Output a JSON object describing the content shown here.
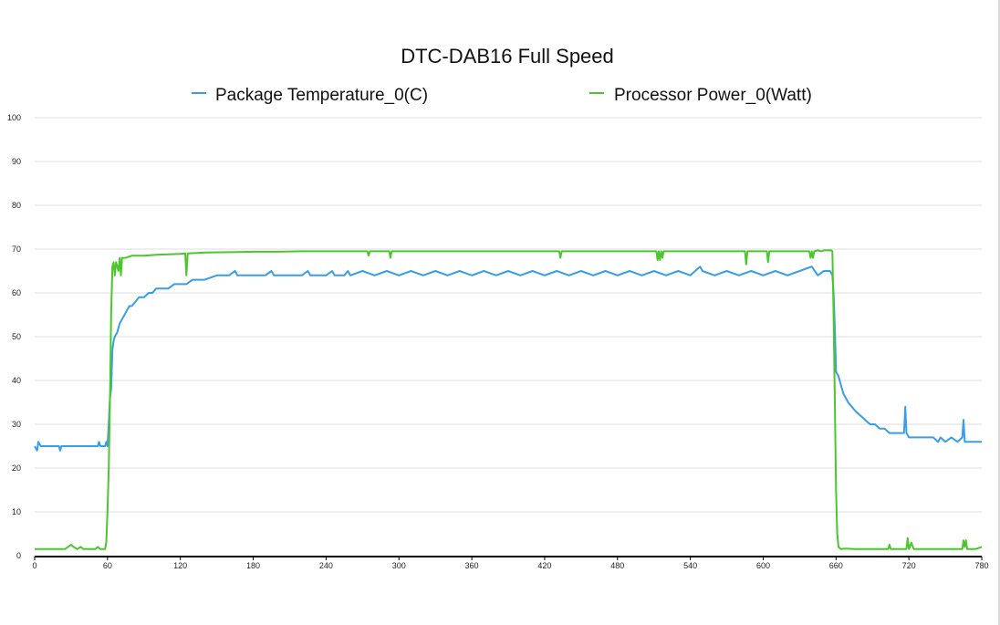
{
  "chart_data": {
    "type": "line",
    "title": "DTC-DAB16 Full Speed",
    "xlabel": "",
    "ylabel": "",
    "xlim": [
      0,
      780
    ],
    "ylim": [
      0,
      100
    ],
    "x_ticks": [
      0,
      60,
      120,
      180,
      240,
      300,
      360,
      420,
      480,
      540,
      600,
      660,
      720,
      780
    ],
    "y_ticks": [
      0,
      10,
      20,
      30,
      40,
      50,
      60,
      70,
      80,
      90,
      100
    ],
    "grid": true,
    "legend_position": "top",
    "series": [
      {
        "name": "Package Temperature_0(C)",
        "color": "#3a9de6",
        "points": [
          [
            0,
            25
          ],
          [
            2,
            24
          ],
          [
            3,
            26
          ],
          [
            5,
            25
          ],
          [
            20,
            25
          ],
          [
            21,
            24
          ],
          [
            22,
            25
          ],
          [
            52,
            25
          ],
          [
            53,
            26
          ],
          [
            54,
            25
          ],
          [
            58,
            25
          ],
          [
            59,
            26
          ],
          [
            60,
            25
          ],
          [
            61,
            30
          ],
          [
            62,
            36
          ],
          [
            63,
            38
          ],
          [
            64,
            47
          ],
          [
            65,
            49
          ],
          [
            66,
            50
          ],
          [
            68,
            51
          ],
          [
            70,
            53
          ],
          [
            72,
            54
          ],
          [
            74,
            55
          ],
          [
            76,
            56
          ],
          [
            78,
            57
          ],
          [
            80,
            57
          ],
          [
            83,
            58
          ],
          [
            86,
            59
          ],
          [
            90,
            59
          ],
          [
            94,
            60
          ],
          [
            97,
            60
          ],
          [
            100,
            61
          ],
          [
            105,
            61
          ],
          [
            110,
            61
          ],
          [
            115,
            62
          ],
          [
            120,
            62
          ],
          [
            125,
            62
          ],
          [
            130,
            63
          ],
          [
            135,
            63
          ],
          [
            140,
            63
          ],
          [
            150,
            64
          ],
          [
            160,
            64
          ],
          [
            165,
            65
          ],
          [
            167,
            64
          ],
          [
            180,
            64
          ],
          [
            190,
            64
          ],
          [
            195,
            65
          ],
          [
            197,
            64
          ],
          [
            220,
            64
          ],
          [
            225,
            65
          ],
          [
            227,
            64
          ],
          [
            240,
            64
          ],
          [
            245,
            65
          ],
          [
            247,
            64
          ],
          [
            255,
            64
          ],
          [
            258,
            65
          ],
          [
            260,
            64
          ],
          [
            270,
            65
          ],
          [
            280,
            64
          ],
          [
            290,
            65
          ],
          [
            300,
            64
          ],
          [
            310,
            65
          ],
          [
            320,
            64
          ],
          [
            330,
            65
          ],
          [
            340,
            64
          ],
          [
            350,
            65
          ],
          [
            360,
            64
          ],
          [
            370,
            65
          ],
          [
            380,
            64
          ],
          [
            390,
            65
          ],
          [
            400,
            64
          ],
          [
            410,
            65
          ],
          [
            420,
            64
          ],
          [
            430,
            65
          ],
          [
            440,
            64
          ],
          [
            450,
            65
          ],
          [
            460,
            64
          ],
          [
            470,
            65
          ],
          [
            480,
            64
          ],
          [
            490,
            65
          ],
          [
            500,
            64
          ],
          [
            510,
            65
          ],
          [
            520,
            64
          ],
          [
            530,
            65
          ],
          [
            540,
            64
          ],
          [
            548,
            66
          ],
          [
            550,
            65
          ],
          [
            560,
            64
          ],
          [
            570,
            65
          ],
          [
            580,
            64
          ],
          [
            590,
            65
          ],
          [
            600,
            64
          ],
          [
            610,
            65
          ],
          [
            620,
            64
          ],
          [
            630,
            65
          ],
          [
            640,
            66
          ],
          [
            645,
            64
          ],
          [
            650,
            65
          ],
          [
            655,
            65
          ],
          [
            657,
            64
          ],
          [
            658,
            60
          ],
          [
            659,
            52
          ],
          [
            660,
            42
          ],
          [
            662,
            41
          ],
          [
            664,
            39
          ],
          [
            666,
            37
          ],
          [
            668,
            36
          ],
          [
            670,
            35
          ],
          [
            673,
            34
          ],
          [
            676,
            33
          ],
          [
            680,
            32
          ],
          [
            684,
            31
          ],
          [
            688,
            30
          ],
          [
            692,
            30
          ],
          [
            696,
            29
          ],
          [
            700,
            29
          ],
          [
            704,
            28
          ],
          [
            710,
            28
          ],
          [
            714,
            28
          ],
          [
            716,
            28
          ],
          [
            717,
            34
          ],
          [
            718,
            28
          ],
          [
            720,
            27
          ],
          [
            730,
            27
          ],
          [
            740,
            27
          ],
          [
            744,
            26
          ],
          [
            746,
            27
          ],
          [
            750,
            26
          ],
          [
            755,
            27
          ],
          [
            760,
            26
          ],
          [
            764,
            27
          ],
          [
            765,
            31
          ],
          [
            766,
            26
          ],
          [
            770,
            26
          ],
          [
            780,
            26
          ]
        ]
      },
      {
        "name": "Processor Power_0(Watt)",
        "color": "#4cc62e",
        "points": [
          [
            0,
            1.5
          ],
          [
            25,
            1.5
          ],
          [
            30,
            2.5
          ],
          [
            32,
            2
          ],
          [
            35,
            1.5
          ],
          [
            38,
            2
          ],
          [
            40,
            1.5
          ],
          [
            50,
            1.5
          ],
          [
            52,
            2
          ],
          [
            54,
            1.5
          ],
          [
            58,
            1.5
          ],
          [
            59,
            3
          ],
          [
            60,
            10
          ],
          [
            61,
            20
          ],
          [
            62,
            35
          ],
          [
            63,
            55
          ],
          [
            64,
            66
          ],
          [
            65,
            67
          ],
          [
            66,
            64
          ],
          [
            67,
            67
          ],
          [
            68,
            66
          ],
          [
            69,
            65
          ],
          [
            70,
            68
          ],
          [
            71,
            64
          ],
          [
            72,
            68
          ],
          [
            75,
            68
          ],
          [
            80,
            68.5
          ],
          [
            90,
            68.5
          ],
          [
            100,
            68.7
          ],
          [
            110,
            68.8
          ],
          [
            120,
            68.9
          ],
          [
            124,
            69
          ],
          [
            125,
            64
          ],
          [
            126,
            69
          ],
          [
            140,
            69.2
          ],
          [
            160,
            69.3
          ],
          [
            180,
            69.4
          ],
          [
            200,
            69.4
          ],
          [
            220,
            69.5
          ],
          [
            240,
            69.5
          ],
          [
            260,
            69.5
          ],
          [
            274,
            69.5
          ],
          [
            275,
            68.5
          ],
          [
            276,
            69.5
          ],
          [
            292,
            69.5
          ],
          [
            293,
            68
          ],
          [
            294,
            69.5
          ],
          [
            310,
            69.5
          ],
          [
            340,
            69.5
          ],
          [
            360,
            69.5
          ],
          [
            380,
            69.5
          ],
          [
            400,
            69.5
          ],
          [
            432,
            69.5
          ],
          [
            433,
            68
          ],
          [
            434,
            69.5
          ],
          [
            460,
            69.5
          ],
          [
            480,
            69.5
          ],
          [
            500,
            69.5
          ],
          [
            512,
            69.5
          ],
          [
            513,
            67.5
          ],
          [
            514,
            69.5
          ],
          [
            515,
            67.5
          ],
          [
            516,
            69.5
          ],
          [
            517,
            68
          ],
          [
            518,
            69.5
          ],
          [
            540,
            69.5
          ],
          [
            560,
            69.5
          ],
          [
            585,
            69.5
          ],
          [
            586,
            66.5
          ],
          [
            587,
            69.5
          ],
          [
            600,
            69.5
          ],
          [
            603,
            69.5
          ],
          [
            604,
            67
          ],
          [
            605,
            69.5
          ],
          [
            620,
            69.5
          ],
          [
            638,
            69.5
          ],
          [
            639,
            68
          ],
          [
            640,
            69.5
          ],
          [
            641,
            68
          ],
          [
            642,
            69.5
          ],
          [
            645,
            69.7
          ],
          [
            648,
            69.5
          ],
          [
            650,
            69.7
          ],
          [
            656,
            69.7
          ],
          [
            657,
            69.5
          ],
          [
            658,
            55
          ],
          [
            659,
            35
          ],
          [
            660,
            15
          ],
          [
            661,
            5
          ],
          [
            662,
            2
          ],
          [
            664,
            1.5
          ],
          [
            668,
            1.6
          ],
          [
            675,
            1.5
          ],
          [
            700,
            1.5
          ],
          [
            703,
            1.5
          ],
          [
            704,
            2.5
          ],
          [
            705,
            1.5
          ],
          [
            718,
            1.5
          ],
          [
            719,
            4
          ],
          [
            720,
            1.5
          ],
          [
            722,
            3
          ],
          [
            724,
            1.5
          ],
          [
            760,
            1.5
          ],
          [
            764,
            1.5
          ],
          [
            765,
            3.5
          ],
          [
            766,
            2
          ],
          [
            767,
            3.5
          ],
          [
            768,
            1.5
          ],
          [
            775,
            1.5
          ],
          [
            780,
            2
          ]
        ]
      }
    ]
  }
}
